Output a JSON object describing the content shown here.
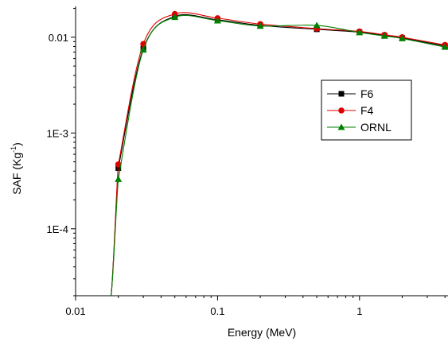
{
  "chart_data": {
    "type": "line",
    "xlabel": "Energy (MeV)",
    "ylabel": "SAF (Kg",
    "ylabel_sup": "-1",
    "ylabel_close": ")",
    "xscale": "log",
    "yscale": "log",
    "xlim": [
      0.01,
      4.2
    ],
    "ylim": [
      2e-05,
      0.021
    ],
    "grid": false,
    "legend_position": "right-middle",
    "x_ticks": [
      {
        "value": 0.01,
        "label": "0.01"
      },
      {
        "value": 0.1,
        "label": "0.1"
      },
      {
        "value": 1,
        "label": "1"
      }
    ],
    "y_ticks": [
      {
        "value": 0.0001,
        "label": "1E-4"
      },
      {
        "value": 0.001,
        "label": "1E-3"
      },
      {
        "value": 0.01,
        "label": "0.01"
      }
    ],
    "series": [
      {
        "name": "F6",
        "color": "#000000",
        "marker": "square",
        "x": [
          0.02,
          0.03,
          0.05,
          0.1,
          0.2,
          0.5,
          1,
          1.5,
          2,
          4
        ],
        "y": [
          0.00043,
          0.0076,
          0.0165,
          0.0152,
          0.0133,
          0.0121,
          0.0113,
          0.0104,
          0.0098,
          0.0081
        ]
      },
      {
        "name": "F4",
        "color": "#e00000",
        "marker": "circle",
        "x": [
          0.02,
          0.03,
          0.05,
          0.1,
          0.2,
          0.5,
          1,
          1.5,
          2,
          4
        ],
        "y": [
          0.00047,
          0.0085,
          0.0175,
          0.0158,
          0.0137,
          0.0123,
          0.0115,
          0.0106,
          0.01,
          0.0083
        ]
      },
      {
        "name": "ORNL",
        "color": "#008000",
        "marker": "triangle",
        "x": [
          0.02,
          0.03,
          0.05,
          0.1,
          0.2,
          0.5,
          1,
          1.5,
          2,
          4
        ],
        "y": [
          0.00033,
          0.0074,
          0.0162,
          0.0149,
          0.0131,
          0.0133,
          0.0112,
          0.0103,
          0.0097,
          0.0079
        ]
      }
    ]
  }
}
